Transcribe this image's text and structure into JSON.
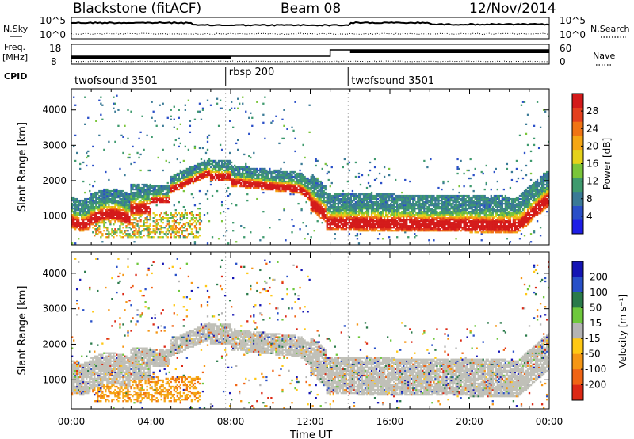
{
  "header": {
    "radar": "Blackstone (fitACF)",
    "beam": "Beam 08",
    "date": "12/Nov/2014"
  },
  "noise_panel": {
    "left_label": "N.Sky",
    "right_label": "N.Search",
    "left_ticks": [
      "10^5",
      "10^0"
    ],
    "right_ticks": [
      "10^5",
      "10^0"
    ]
  },
  "freq_panel": {
    "left_label_1": "Freq.",
    "left_label_2": "[MHz]",
    "right_label": "Nave",
    "left_ticks": [
      "18",
      "8"
    ],
    "right_ticks": [
      "60",
      "0"
    ]
  },
  "cpid": {
    "label": "CPID",
    "segments": [
      {
        "name": "twofsound 3501",
        "start_hour": 0
      },
      {
        "name": "rbsp 200",
        "start_hour": 7.75
      },
      {
        "name": "twofsound 3501",
        "start_hour": 13.9
      }
    ]
  },
  "colors": {
    "power_scale": [
      "#1e1ee6",
      "#2a4fc8",
      "#3a7a96",
      "#3f9a6e",
      "#7ac53a",
      "#e5d21a",
      "#f5a614",
      "#f07414",
      "#e4401e",
      "#d41a1a"
    ],
    "velocity_scale": [
      "#1414b4",
      "#2850c8",
      "#2a7a4a",
      "#6ec83c",
      "#b4b4b4",
      "#ffc814",
      "#f59614",
      "#f06414",
      "#dc2814"
    ]
  },
  "chart_data": [
    {
      "type": "heatmap",
      "name": "power",
      "ylabel": "Slant Range [km]",
      "yticks": [
        1000,
        2000,
        3000,
        4000
      ],
      "ylim": [
        180,
        4600
      ],
      "xlim": [
        0,
        24
      ],
      "colorbar_label": "Power [dB]",
      "colorbar_ticks": [
        4,
        8,
        12,
        16,
        20,
        24,
        28
      ],
      "colorbar_range": [
        0,
        32
      ],
      "grid": false
    },
    {
      "type": "heatmap",
      "name": "velocity",
      "ylabel": "Slant Range [km]",
      "yticks": [
        1000,
        2000,
        3000,
        4000
      ],
      "ylim": [
        180,
        4600
      ],
      "xlim": [
        0,
        24
      ],
      "colorbar_label": "Velocity [m s⁻¹]",
      "colorbar_ticks": [
        200,
        100,
        50,
        15,
        -15,
        -50,
        -100,
        -200
      ],
      "ground_scatter_color": "#c0c0b8",
      "grid": false
    }
  ],
  "x_axis": {
    "label": "Time UT",
    "ticks": [
      "00:00",
      "04:00",
      "08:00",
      "12:00",
      "16:00",
      "20:00",
      "00:00"
    ]
  }
}
